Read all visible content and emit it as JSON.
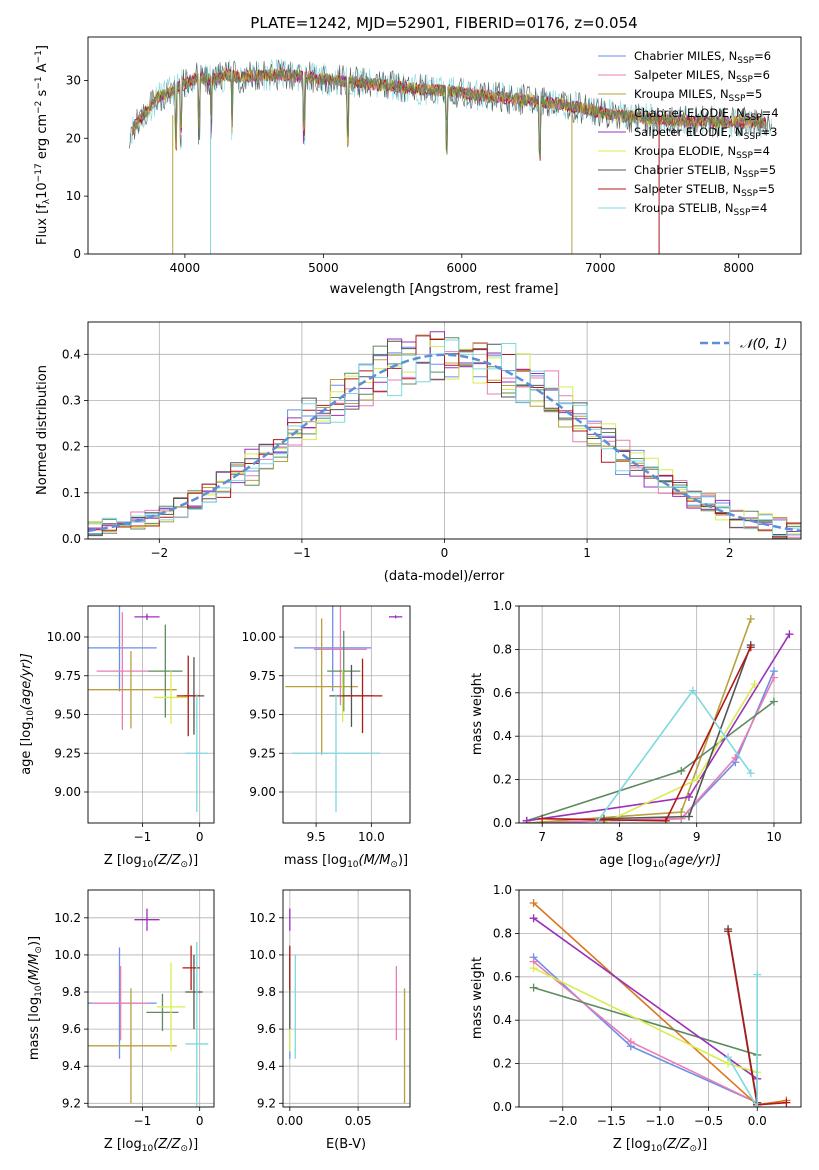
{
  "colors": {
    "cm": "#6c8ee8",
    "sm": "#e97db5",
    "km": "#b8a040",
    "ce": "#5e8c5e",
    "se": "#9b30b8",
    "ke": "#d8ec50",
    "cs": "#555555",
    "ss": "#b01818",
    "ks": "#7ed8e0",
    "bo": "#d87820",
    "norm": "#5b8fd8",
    "grid": "#b0b0b0"
  },
  "chart_data": [
    {
      "id": "spectrum",
      "type": "line",
      "title": "PLATE=1242, MJD=52901, FIBERID=0176, z=0.054",
      "xlabel": "wavelength [Angstrom, rest frame]",
      "ylabel": "Flux [f",
      "ylabel_sub": "λ",
      "ylabel_rest": "10",
      "ylabel_sup": "−17",
      "ylabel_end": " erg cm",
      "ylabel_sup2": "−2",
      "ylabel_end2": " s",
      "ylabel_sup3": "−1",
      "ylabel_end3": " A",
      "ylabel_sup4": "−1",
      "ylabel_close": "]",
      "xlim": [
        3300,
        8450
      ],
      "ylim": [
        0,
        37.5
      ],
      "xticks": [
        4000,
        5000,
        6000,
        7000,
        8000
      ],
      "yticks": [
        0,
        10,
        20,
        30
      ],
      "continuum": {
        "x": [
          3600,
          3700,
          3800,
          3900,
          4000,
          4100,
          4200,
          4300,
          4400,
          4500,
          4700,
          4900,
          5100,
          5300,
          5500,
          5700,
          5900,
          6100,
          6300,
          6500,
          6700,
          6900,
          7100,
          7300,
          7500,
          7700,
          7900,
          8100,
          8250
        ],
        "y": [
          21,
          24,
          27,
          28,
          29.5,
          30.5,
          30,
          31,
          30.5,
          30.8,
          31,
          30.5,
          30,
          29.5,
          29,
          28.5,
          28.2,
          27.5,
          27,
          26.5,
          26,
          25,
          24,
          23.5,
          23,
          23,
          22.8,
          22.8,
          22.5
        ]
      },
      "legend": [
        {
          "name": "Chabrier MILES, N",
          "sub": "SSP",
          "val": "=6",
          "key": "cm"
        },
        {
          "name": "Salpeter MILES, N",
          "sub": "SSP",
          "val": "=6",
          "key": "sm"
        },
        {
          "name": "Kroupa MILES, N",
          "sub": "SSP",
          "val": "=5",
          "key": "km"
        },
        {
          "name": "Chabrier ELODIE, N",
          "sub": "SSP",
          "val": "=4",
          "key": "ce"
        },
        {
          "name": "Salpeter ELODIE, N",
          "sub": "SSP",
          "val": "=3",
          "key": "se"
        },
        {
          "name": "Kroupa ELODIE, N",
          "sub": "SSP",
          "val": "=4",
          "key": "ke"
        },
        {
          "name": "Chabrier STELIB, N",
          "sub": "SSP",
          "val": "=5",
          "key": "cs"
        },
        {
          "name": "Salpeter STELIB, N",
          "sub": "SSP",
          "val": "=5",
          "key": "ss"
        },
        {
          "name": "Kroupa STELIB, N",
          "sub": "SSP",
          "val": "=4",
          "key": "ks"
        }
      ],
      "legend_position": "upper right"
    },
    {
      "id": "residuals",
      "type": "line",
      "xlabel": "(data-model)/error",
      "ylabel": "Normed distribution",
      "xlim": [
        -2.5,
        2.5
      ],
      "ylim": [
        0,
        0.47
      ],
      "xticks": [
        -2,
        -1,
        0,
        1,
        2
      ],
      "yticks": [
        0.0,
        0.1,
        0.2,
        0.3,
        0.4
      ],
      "legend": "𝒩(0, 1)",
      "legend_position": "upper right",
      "grid": true
    },
    {
      "id": "age-vs-z",
      "type": "scatter",
      "xlabel": "Z [log",
      "xlabel_sub": "10",
      "xlabel_rest": "(Z/Z",
      "xlabel_sub2": "⊙",
      "xlabel_close": ")]",
      "ylabel": "age  [log",
      "ylabel_sub": "10",
      "ylabel_rest": "(age/yr)]",
      "xlim": [
        -1.95,
        0.25
      ],
      "ylim": [
        8.8,
        10.2
      ],
      "xticks": [
        -1,
        0
      ],
      "yticks": [
        9.0,
        9.25,
        9.5,
        9.75,
        10.0
      ],
      "errorbars": [
        {
          "key": "cm",
          "x": -1.4,
          "xerr": 0.65,
          "y": 9.93,
          "yerr": 0.28
        },
        {
          "key": "sm",
          "x": -1.35,
          "xerr": 0.45,
          "y": 9.78,
          "yerr": 0.38
        },
        {
          "key": "km",
          "x": -1.2,
          "xerr": 0.8,
          "y": 9.66,
          "yerr": 0.25
        },
        {
          "key": "ce",
          "x": -0.6,
          "xerr": 0.3,
          "y": 9.78,
          "yerr": 0.3
        },
        {
          "key": "se",
          "x": -0.92,
          "xerr": 0.22,
          "y": 10.13,
          "yerr": 0.02
        },
        {
          "key": "ke",
          "x": -0.5,
          "xerr": 0.3,
          "y": 9.61,
          "yerr": 0.17
        },
        {
          "key": "cs",
          "x": -0.1,
          "xerr": 0.18,
          "y": 9.62,
          "yerr": 0.25
        },
        {
          "key": "ss",
          "x": -0.2,
          "xerr": 0.2,
          "y": 9.62,
          "yerr": 0.26
        },
        {
          "key": "ks",
          "x": -0.05,
          "xerr": 0.2,
          "y": 9.25,
          "yerr": 0.38
        }
      ]
    },
    {
      "id": "age-vs-mass",
      "type": "scatter",
      "xlabel": "mass [log",
      "xlabel_sub": "10",
      "xlabel_rest": "(M/M",
      "xlabel_sub2": "⊙",
      "xlabel_close": ")]",
      "xlim": [
        9.2,
        10.35
      ],
      "ylim": [
        8.8,
        10.2
      ],
      "xticks": [
        9.5,
        10.0
      ],
      "yticks": [
        9.0,
        9.25,
        9.5,
        9.75,
        10.0
      ],
      "errorbars": [
        {
          "key": "cm",
          "x": 9.65,
          "xerr": 0.35,
          "y": 9.93,
          "yerr": 0.28
        },
        {
          "key": "sm",
          "x": 9.72,
          "xerr": 0.24,
          "y": 9.92,
          "yerr": 0.36
        },
        {
          "key": "km",
          "x": 9.55,
          "xerr": 0.33,
          "y": 9.68,
          "yerr": 0.44
        },
        {
          "key": "ce",
          "x": 9.75,
          "xerr": 0.15,
          "y": 9.78,
          "yerr": 0.26
        },
        {
          "key": "se",
          "x": 10.22,
          "xerr": 0.06,
          "y": 10.13,
          "yerr": 0.01
        },
        {
          "key": "ke",
          "x": 9.74,
          "xerr": 0.1,
          "y": 9.62,
          "yerr": 0.17
        },
        {
          "key": "cs",
          "x": 9.82,
          "xerr": 0.2,
          "y": 9.62,
          "yerr": 0.2
        },
        {
          "key": "ss",
          "x": 9.92,
          "xerr": 0.18,
          "y": 9.62,
          "yerr": 0.24
        },
        {
          "key": "ks",
          "x": 9.68,
          "xerr": 0.4,
          "y": 9.25,
          "yerr": 0.38
        }
      ]
    },
    {
      "id": "massweight-vs-age",
      "type": "line",
      "xlabel": "age  [log",
      "xlabel_sub": "10",
      "xlabel_rest": "(age/yr)]",
      "ylabel": "mass weight",
      "xlim": [
        6.7,
        10.35
      ],
      "ylim": [
        0,
        1.0
      ],
      "xticks": [
        7,
        8,
        9,
        10
      ],
      "yticks": [
        0.0,
        0.2,
        0.4,
        0.6,
        0.8,
        1.0
      ],
      "series": [
        {
          "key": "cm",
          "x": [
            6.8,
            8.8,
            9.5,
            10.0
          ],
          "y": [
            0.0,
            0.02,
            0.28,
            0.7
          ]
        },
        {
          "key": "sm",
          "x": [
            6.8,
            8.8,
            9.5,
            10.0
          ],
          "y": [
            0.0,
            0.02,
            0.3,
            0.67
          ]
        },
        {
          "key": "km",
          "x": [
            6.8,
            8.8,
            9.7
          ],
          "y": [
            0.0,
            0.05,
            0.94
          ]
        },
        {
          "key": "ce",
          "x": [
            6.8,
            8.8,
            10.0
          ],
          "y": [
            0.01,
            0.24,
            0.56
          ]
        },
        {
          "key": "se",
          "x": [
            6.8,
            8.9,
            10.2
          ],
          "y": [
            0.01,
            0.12,
            0.87
          ]
        },
        {
          "key": "ke",
          "x": [
            7.8,
            9.0,
            9.75
          ],
          "y": [
            0.0,
            0.2,
            0.64
          ]
        },
        {
          "key": "cs",
          "x": [
            7.8,
            8.9,
            9.7
          ],
          "y": [
            0.02,
            0.03,
            0.82
          ]
        },
        {
          "key": "ss",
          "x": [
            7.0,
            8.6,
            9.7
          ],
          "y": [
            0.02,
            0.01,
            0.81
          ]
        },
        {
          "key": "ks",
          "x": [
            7.7,
            8.95,
            9.7
          ],
          "y": [
            0.0,
            0.61,
            0.23
          ]
        }
      ]
    },
    {
      "id": "mass-vs-z",
      "type": "scatter",
      "xlabel": "Z [log",
      "xlabel_sub": "10",
      "xlabel_rest": "(Z/Z",
      "xlabel_sub2": "⊙",
      "xlabel_close": ")]",
      "ylabel": "mass [log",
      "ylabel_sub": "10",
      "ylabel_rest": "(M/M",
      "ylabel_sub2": "⊙",
      "ylabel_close": ")]",
      "xlim": [
        -1.95,
        0.25
      ],
      "ylim": [
        9.18,
        10.35
      ],
      "xticks": [
        -1,
        0
      ],
      "yticks": [
        9.2,
        9.4,
        9.6,
        9.8,
        10.0,
        10.2
      ],
      "errorbars": [
        {
          "key": "cm",
          "x": -1.4,
          "xerr": 0.65,
          "y": 9.74,
          "yerr": 0.3
        },
        {
          "key": "sm",
          "x": -1.38,
          "xerr": 0.5,
          "y": 9.74,
          "yerr": 0.2
        },
        {
          "key": "km",
          "x": -1.2,
          "xerr": 0.8,
          "y": 9.51,
          "yerr": 0.31
        },
        {
          "key": "ce",
          "x": -0.65,
          "xerr": 0.28,
          "y": 9.69,
          "yerr": 0.1
        },
        {
          "key": "se",
          "x": -0.92,
          "xerr": 0.22,
          "y": 10.19,
          "yerr": 0.06
        },
        {
          "key": "ke",
          "x": -0.5,
          "xerr": 0.25,
          "y": 9.72,
          "yerr": 0.24
        },
        {
          "key": "cs",
          "x": -0.1,
          "xerr": 0.15,
          "y": 9.8,
          "yerr": 0.2
        },
        {
          "key": "ss",
          "x": -0.15,
          "xerr": 0.15,
          "y": 9.93,
          "yerr": 0.12
        },
        {
          "key": "ks",
          "x": -0.05,
          "xerr": 0.2,
          "y": 9.52,
          "yerr": 0.55
        }
      ]
    },
    {
      "id": "mass-vs-ebv",
      "type": "scatter",
      "xlabel": "E(B-V)",
      "xlim": [
        -0.005,
        0.088
      ],
      "ylim": [
        9.18,
        10.35
      ],
      "xticks": [
        0.0,
        0.05
      ],
      "yticks": [
        9.2,
        9.4,
        9.6,
        9.8,
        10.0,
        10.2
      ],
      "errorbars": [
        {
          "key": "cm",
          "x": 0.0,
          "xerr": 0.0,
          "y": 9.74,
          "yerr": 0.3
        },
        {
          "key": "sm",
          "x": 0.078,
          "xerr": 0.0,
          "y": 9.74,
          "yerr": 0.2
        },
        {
          "key": "km",
          "x": 0.084,
          "xerr": 0.0,
          "y": 9.51,
          "yerr": 0.31
        },
        {
          "key": "ce",
          "x": 0.0,
          "xerr": 0.0,
          "y": 9.69,
          "yerr": 0.1
        },
        {
          "key": "se",
          "x": 0.0,
          "xerr": 0.0,
          "y": 10.19,
          "yerr": 0.06
        },
        {
          "key": "ke",
          "x": 0.0,
          "xerr": 0.0,
          "y": 9.72,
          "yerr": 0.24
        },
        {
          "key": "cs",
          "x": 0.0,
          "xerr": 0.0,
          "y": 9.8,
          "yerr": 0.2
        },
        {
          "key": "ss",
          "x": 0.0,
          "xerr": 0.0,
          "y": 9.93,
          "yerr": 0.12
        },
        {
          "key": "ks",
          "x": 0.004,
          "xerr": 0.0,
          "y": 9.72,
          "yerr": 0.28
        }
      ]
    },
    {
      "id": "massweight-vs-z",
      "type": "line",
      "xlabel": "Z [log",
      "xlabel_sub": "10",
      "xlabel_rest": "(Z/Z",
      "xlabel_sub2": "⊙",
      "xlabel_close": ")]",
      "ylabel": "mass weight",
      "xlim": [
        -2.45,
        0.45
      ],
      "ylim": [
        0,
        1.0
      ],
      "xticks": [
        -2.0,
        -1.5,
        -1.0,
        -0.5,
        0.0
      ],
      "yticks": [
        0.0,
        0.2,
        0.4,
        0.6,
        0.8,
        1.0
      ],
      "series": [
        {
          "key": "cm",
          "x": [
            -2.3,
            -1.3,
            0.0
          ],
          "y": [
            0.69,
            0.28,
            0.02
          ]
        },
        {
          "key": "sm",
          "x": [
            -2.3,
            -1.3,
            0.0
          ],
          "y": [
            0.67,
            0.3,
            0.02
          ]
        },
        {
          "key": "bo",
          "x": [
            -2.3,
            0.0,
            0.3
          ],
          "y": [
            0.94,
            0.01,
            0.03
          ]
        },
        {
          "key": "ce",
          "x": [
            -2.3,
            0.0,
            0.0
          ],
          "y": [
            0.55,
            0.24,
            0.01
          ]
        },
        {
          "key": "se",
          "x": [
            -2.3,
            0.0,
            0.0
          ],
          "y": [
            0.87,
            0.13,
            0.01
          ]
        },
        {
          "key": "ke",
          "x": [
            -2.3,
            -0.3,
            0.0
          ],
          "y": [
            0.64,
            0.2,
            0.16
          ]
        },
        {
          "key": "cs",
          "x": [
            -0.3,
            0.0,
            0.0
          ],
          "y": [
            0.82,
            0.02,
            0.0
          ]
        },
        {
          "key": "ss",
          "x": [
            -0.3,
            0.0,
            0.3
          ],
          "y": [
            0.81,
            0.01,
            0.02
          ]
        },
        {
          "key": "ks",
          "x": [
            0.0,
            0.0,
            -0.3
          ],
          "y": [
            0.61,
            0.0,
            0.23
          ]
        }
      ]
    }
  ]
}
